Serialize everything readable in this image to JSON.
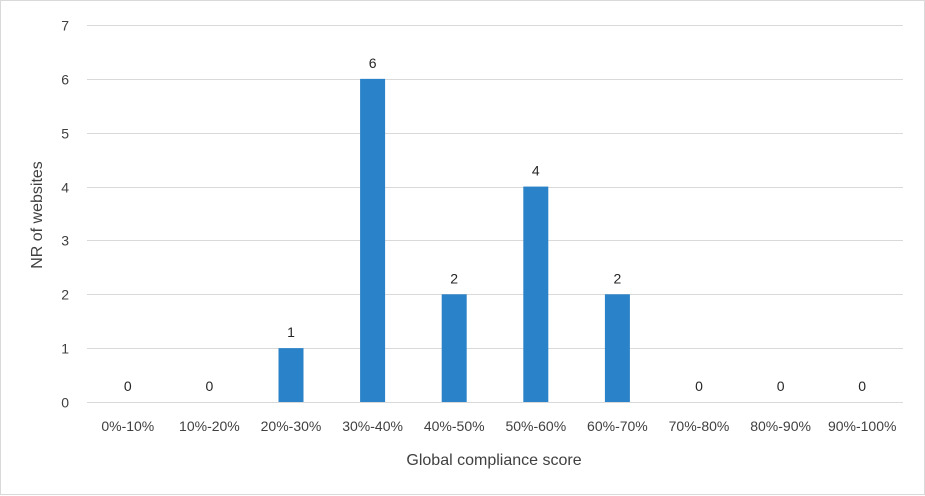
{
  "chart_data": {
    "type": "bar",
    "categories": [
      "0%-10%",
      "10%-20%",
      "20%-30%",
      "30%-40%",
      "40%-50%",
      "50%-60%",
      "60%-70%",
      "70%-80%",
      "80%-90%",
      "90%-100%"
    ],
    "values": [
      0,
      0,
      1,
      6,
      2,
      4,
      2,
      0,
      0,
      0
    ],
    "xlabel": "Global compliance score",
    "ylabel": "NR of websites",
    "ylim": [
      0,
      7
    ],
    "yticks": [
      "0",
      "1",
      "2",
      "3",
      "4",
      "5",
      "6",
      "7"
    ],
    "grid": "horizontal",
    "data_labels": true,
    "bar_color": "#2a82c8"
  }
}
